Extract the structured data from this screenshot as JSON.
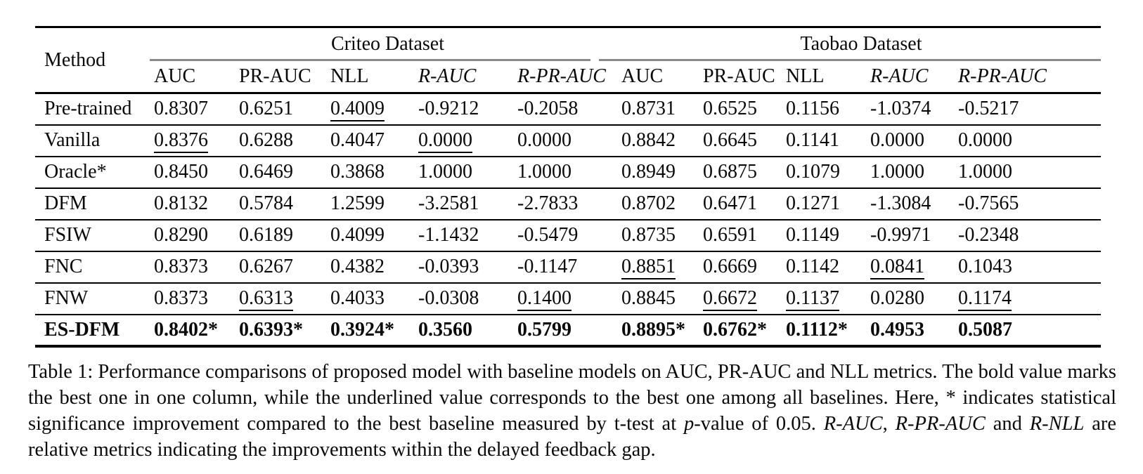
{
  "table": {
    "method_header": "Method",
    "groups": [
      {
        "label": "Criteo Dataset"
      },
      {
        "label": "Taobao Dataset"
      }
    ],
    "metric_headers": [
      {
        "label": "AUC",
        "italic": false
      },
      {
        "label": "PR-AUC",
        "italic": false
      },
      {
        "label": "NLL",
        "italic": false
      },
      {
        "label": "R-AUC",
        "italic": true
      },
      {
        "label": "R-PR-AUC",
        "italic": true
      },
      {
        "label": "AUC",
        "italic": false
      },
      {
        "label": "PR-AUC",
        "italic": false
      },
      {
        "label": "NLL",
        "italic": false
      },
      {
        "label": "R-AUC",
        "italic": true
      },
      {
        "label": "R-PR-AUC",
        "italic": true
      }
    ],
    "rows": [
      {
        "method": "Pre-trained",
        "bold": false,
        "cells": [
          {
            "v": "0.8307"
          },
          {
            "v": "0.6251"
          },
          {
            "v": "0.4009",
            "u": true
          },
          {
            "v": "-0.9212"
          },
          {
            "v": "-0.2058"
          },
          {
            "v": "0.8731"
          },
          {
            "v": "0.6525"
          },
          {
            "v": "0.1156"
          },
          {
            "v": "-1.0374"
          },
          {
            "v": "-0.5217"
          }
        ]
      },
      {
        "method": "Vanilla",
        "bold": false,
        "cells": [
          {
            "v": "0.8376",
            "u": true
          },
          {
            "v": "0.6288"
          },
          {
            "v": "0.4047"
          },
          {
            "v": "0.0000",
            "u": true
          },
          {
            "v": "0.0000"
          },
          {
            "v": "0.8842"
          },
          {
            "v": "0.6645"
          },
          {
            "v": "0.1141"
          },
          {
            "v": "0.0000"
          },
          {
            "v": "0.0000"
          }
        ]
      },
      {
        "method": "Oracle*",
        "bold": false,
        "cells": [
          {
            "v": "0.8450"
          },
          {
            "v": "0.6469"
          },
          {
            "v": "0.3868"
          },
          {
            "v": "1.0000"
          },
          {
            "v": "1.0000"
          },
          {
            "v": "0.8949"
          },
          {
            "v": "0.6875"
          },
          {
            "v": "0.1079"
          },
          {
            "v": "1.0000"
          },
          {
            "v": "1.0000"
          }
        ]
      },
      {
        "method": "DFM",
        "bold": false,
        "cells": [
          {
            "v": "0.8132"
          },
          {
            "v": "0.5784"
          },
          {
            "v": "1.2599"
          },
          {
            "v": "-3.2581"
          },
          {
            "v": "-2.7833"
          },
          {
            "v": "0.8702"
          },
          {
            "v": "0.6471"
          },
          {
            "v": "0.1271"
          },
          {
            "v": "-1.3084"
          },
          {
            "v": "-0.7565"
          }
        ]
      },
      {
        "method": "FSIW",
        "bold": false,
        "cells": [
          {
            "v": "0.8290"
          },
          {
            "v": "0.6189"
          },
          {
            "v": "0.4099"
          },
          {
            "v": "-1.1432"
          },
          {
            "v": "-0.5479"
          },
          {
            "v": "0.8735"
          },
          {
            "v": "0.6591"
          },
          {
            "v": "0.1149"
          },
          {
            "v": "-0.9971"
          },
          {
            "v": "-0.2348"
          }
        ]
      },
      {
        "method": "FNC",
        "bold": false,
        "cells": [
          {
            "v": "0.8373"
          },
          {
            "v": "0.6267"
          },
          {
            "v": "0.4382"
          },
          {
            "v": "-0.0393"
          },
          {
            "v": "-0.1147"
          },
          {
            "v": "0.8851",
            "u": true
          },
          {
            "v": "0.6669"
          },
          {
            "v": "0.1142"
          },
          {
            "v": "0.0841",
            "u": true
          },
          {
            "v": "0.1043"
          }
        ]
      },
      {
        "method": "FNW",
        "bold": false,
        "cells": [
          {
            "v": "0.8373"
          },
          {
            "v": "0.6313",
            "u": true
          },
          {
            "v": "0.4033"
          },
          {
            "v": "-0.0308"
          },
          {
            "v": "0.1400",
            "u": true
          },
          {
            "v": "0.8845"
          },
          {
            "v": "0.6672",
            "u": true
          },
          {
            "v": "0.1137",
            "u": true
          },
          {
            "v": "0.0280"
          },
          {
            "v": "0.1174",
            "u": true
          }
        ]
      },
      {
        "method": "ES-DFM",
        "bold": true,
        "cells": [
          {
            "v": "0.8402*"
          },
          {
            "v": "0.6393*"
          },
          {
            "v": "0.3924*"
          },
          {
            "v": "0.3560"
          },
          {
            "v": "0.5799"
          },
          {
            "v": "0.8895*"
          },
          {
            "v": "0.6762*"
          },
          {
            "v": "0.1112*"
          },
          {
            "v": "0.4953"
          },
          {
            "v": "0.5087"
          }
        ]
      }
    ]
  },
  "caption": {
    "segments": [
      {
        "t": "Table 1: Performance comparisons of proposed model with baseline models on AUC, PR-AUC and NLL metrics. The bold value marks the best one in one column, while the underlined value corresponds to the best one among all baselines. Here, * indicates statistical significance improvement compared to the best baseline measured by t-test at ",
        "i": false
      },
      {
        "t": "p",
        "i": true
      },
      {
        "t": "-value of 0.05. ",
        "i": false
      },
      {
        "t": "R-AUC",
        "i": true
      },
      {
        "t": ", ",
        "i": false
      },
      {
        "t": "R-PR-AUC",
        "i": true
      },
      {
        "t": " and ",
        "i": false
      },
      {
        "t": "R-NLL",
        "i": true
      },
      {
        "t": " are relative metrics indicating the improvements within the delayed feedback gap.",
        "i": false
      }
    ]
  }
}
